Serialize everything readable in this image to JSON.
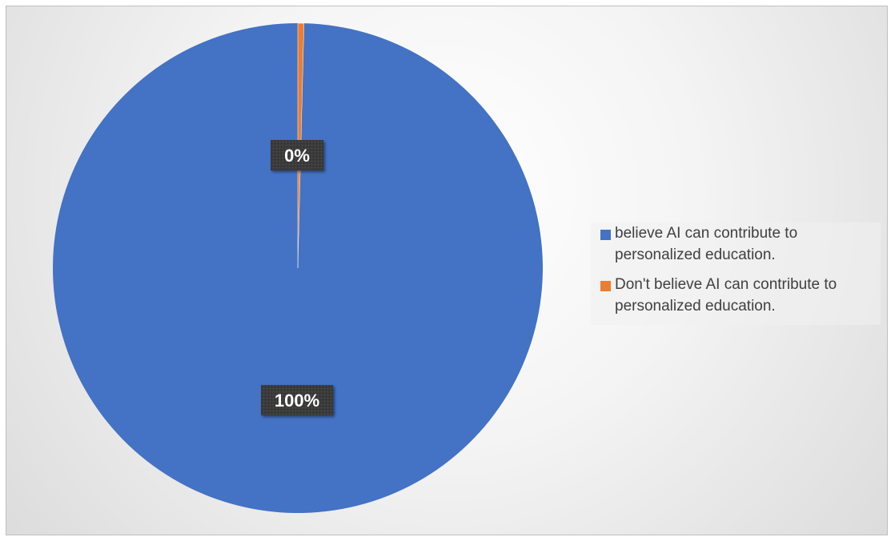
{
  "chart_data": {
    "type": "pie",
    "title": "",
    "categories": [
      "believe AI can contribute to personalized education.",
      "Don't believe AI can contribute to personalized education."
    ],
    "values": [
      99.6,
      0.4
    ],
    "data_labels": [
      "100%",
      "0%"
    ],
    "colors": [
      "#4472c4",
      "#ed7d31"
    ],
    "legend_position": "right"
  }
}
